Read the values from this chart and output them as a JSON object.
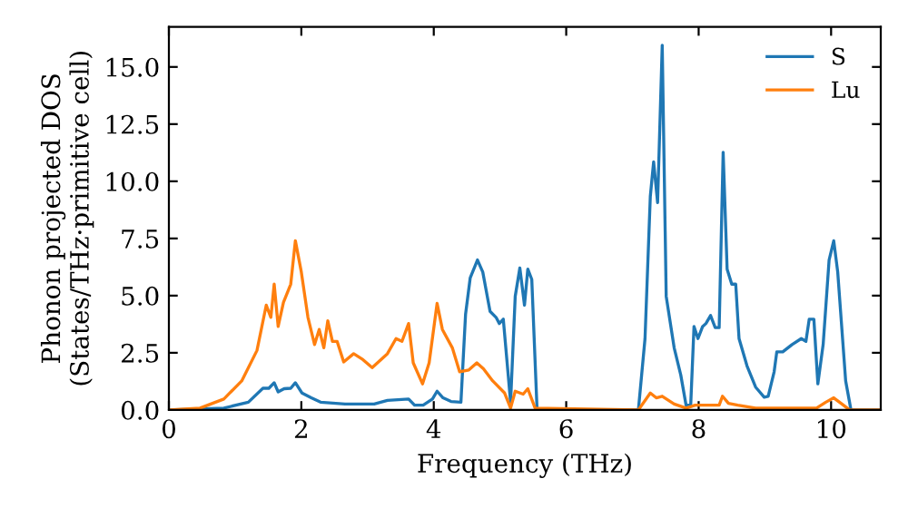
{
  "chart_data": {
    "type": "line",
    "xlabel": "Frequency (THz)",
    "ylabel": "Phonon projected DOS\n(States/THz·primitive cell)",
    "xlim": [
      0,
      10.75
    ],
    "ylim": [
      0,
      16.75
    ],
    "xticks": [
      0,
      2,
      4,
      6,
      8,
      10
    ],
    "yticks": [
      {
        "value": 0,
        "label": "0.0"
      },
      {
        "value": 2.5,
        "label": "2.5"
      },
      {
        "value": 5,
        "label": "5.0"
      },
      {
        "value": 7.5,
        "label": "7.5"
      },
      {
        "value": 10,
        "label": "10.0"
      },
      {
        "value": 12.5,
        "label": "12.5"
      },
      {
        "value": 15,
        "label": "15.0"
      }
    ],
    "grid": false,
    "legend": "top right",
    "line_style": "solid",
    "marker": "none",
    "series": [
      {
        "name": "S",
        "color": "#1f77b4",
        "x": [
          0,
          0.83,
          1.2,
          1.42,
          1.51,
          1.59,
          1.65,
          1.74,
          1.84,
          1.91,
          2.01,
          2.15,
          2.29,
          2.66,
          3.1,
          3.3,
          3.62,
          3.71,
          3.84,
          3.98,
          4.05,
          4.14,
          4.26,
          4.41,
          4.48,
          4.55,
          4.66,
          4.74,
          4.85,
          4.94,
          4.99,
          5.05,
          5.16,
          5.23,
          5.3,
          5.37,
          5.42,
          5.48,
          5.56,
          7.09,
          7.19,
          7.27,
          7.32,
          7.38,
          7.45,
          7.51,
          7.63,
          7.73,
          7.81,
          7.88,
          7.93,
          7.99,
          8.06,
          8.11,
          8.18,
          8.25,
          8.31,
          8.37,
          8.43,
          8.5,
          8.56,
          8.61,
          8.73,
          8.86,
          8.99,
          9.05,
          9.14,
          9.18,
          9.27,
          9.41,
          9.55,
          9.62,
          9.67,
          9.74,
          9.8,
          9.88,
          9.97,
          10.04,
          10.1,
          10.22,
          10.3,
          10.74
        ],
        "values": [
          0,
          0.08,
          0.34,
          0.95,
          0.95,
          1.19,
          0.79,
          0.93,
          0.95,
          1.19,
          0.74,
          0.53,
          0.34,
          0.26,
          0.26,
          0.42,
          0.48,
          0.21,
          0.21,
          0.48,
          0.82,
          0.53,
          0.37,
          0.34,
          4.18,
          5.77,
          6.56,
          6.03,
          4.31,
          4.05,
          3.78,
          3.97,
          0.34,
          4.97,
          6.21,
          4.58,
          6.16,
          5.71,
          0,
          0,
          3.12,
          9.34,
          10.85,
          9.07,
          15.95,
          4.97,
          2.72,
          1.53,
          0.21,
          0.21,
          3.65,
          3.12,
          3.65,
          3.78,
          4.13,
          3.6,
          3.6,
          11.27,
          6.16,
          5.5,
          5.5,
          3.12,
          1.93,
          1.0,
          0.56,
          0.6,
          1.67,
          2.54,
          2.54,
          2.86,
          3.12,
          3.0,
          3.97,
          3.97,
          1.14,
          2.86,
          6.56,
          7.4,
          6.03,
          1.27,
          0,
          0
        ]
      },
      {
        "name": "Lu",
        "color": "#ff7f0e",
        "x": [
          0,
          0.47,
          0.83,
          1.1,
          1.33,
          1.47,
          1.54,
          1.59,
          1.65,
          1.73,
          1.84,
          1.91,
          2.0,
          2.1,
          2.2,
          2.27,
          2.34,
          2.4,
          2.47,
          2.54,
          2.64,
          2.79,
          2.93,
          3.07,
          3.3,
          3.43,
          3.52,
          3.62,
          3.69,
          3.83,
          3.93,
          4.05,
          4.13,
          4.28,
          4.39,
          4.53,
          4.65,
          4.75,
          4.89,
          5.07,
          5.16,
          5.23,
          5.35,
          5.42,
          5.53,
          7.09,
          7.27,
          7.36,
          7.45,
          7.63,
          7.81,
          7.95,
          8.31,
          8.36,
          8.45,
          8.59,
          8.86,
          9.78,
          9.92,
          10.04,
          10.15,
          10.28,
          10.74
        ],
        "values": [
          0,
          0.08,
          0.48,
          1.27,
          2.6,
          4.58,
          4.05,
          5.5,
          3.65,
          4.7,
          5.5,
          7.4,
          6.03,
          4.05,
          2.86,
          3.52,
          2.72,
          3.9,
          3.0,
          3.0,
          2.1,
          2.46,
          2.2,
          1.85,
          2.46,
          3.12,
          3.0,
          3.78,
          2.06,
          1.14,
          2.06,
          4.66,
          3.52,
          2.72,
          1.67,
          1.75,
          2.06,
          1.8,
          1.27,
          0.74,
          0.08,
          0.82,
          0.69,
          0.93,
          0.08,
          0,
          0.74,
          0.53,
          0.6,
          0.26,
          0.08,
          0.21,
          0.21,
          0.6,
          0.29,
          0.21,
          0.08,
          0.08,
          0.34,
          0.53,
          0.29,
          0,
          0
        ]
      }
    ]
  }
}
